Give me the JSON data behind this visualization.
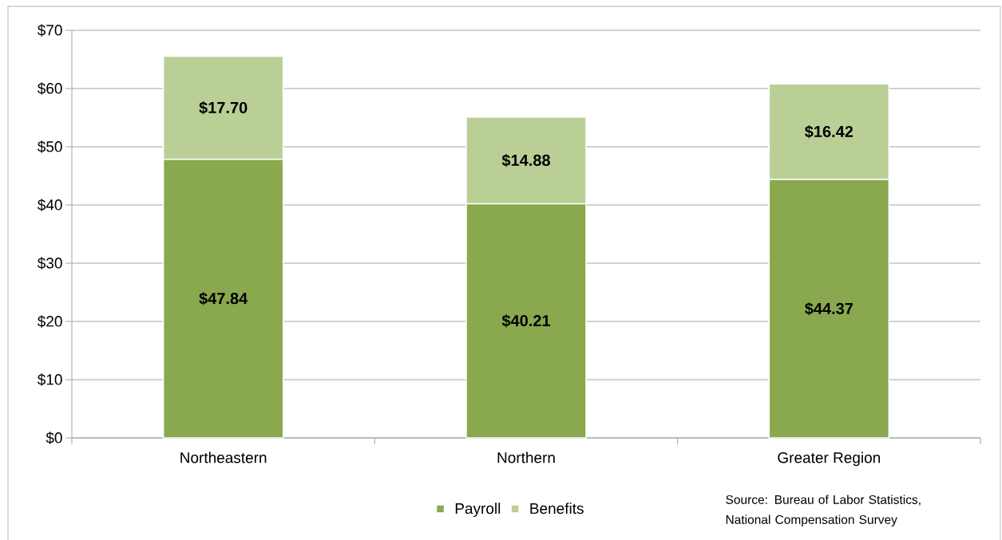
{
  "chart_data": {
    "type": "bar",
    "stacked": true,
    "categories": [
      "Northeastern",
      "Northern",
      "Greater Region"
    ],
    "series": [
      {
        "name": "Payroll",
        "color": "#8aa84e",
        "values": [
          47.84,
          40.21,
          44.37
        ],
        "value_labels": [
          "$47.84",
          "$40.21",
          "$44.37"
        ]
      },
      {
        "name": "Benefits",
        "color": "#bacf96",
        "values": [
          17.7,
          14.88,
          16.42
        ],
        "value_labels": [
          "$17.70",
          "$14.88",
          "$16.42"
        ]
      }
    ],
    "ylim": [
      0,
      70
    ],
    "yticks": [
      {
        "value": 0,
        "label": "$0"
      },
      {
        "value": 10,
        "label": "$10"
      },
      {
        "value": 20,
        "label": "$20"
      },
      {
        "value": 30,
        "label": "$30"
      },
      {
        "value": 40,
        "label": "$40"
      },
      {
        "value": 50,
        "label": "$50"
      },
      {
        "value": 60,
        "label": "$60"
      },
      {
        "value": 70,
        "label": "$70"
      }
    ],
    "grid": "y",
    "legend": "bottom",
    "annotations": [
      "Source:  Bureau of Labor Statistics, National Compensation Survey"
    ]
  }
}
